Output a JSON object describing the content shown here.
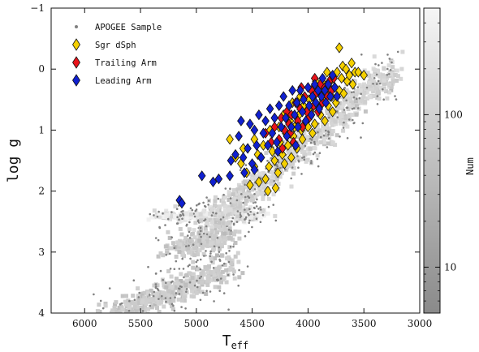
{
  "chart_data": [
    {
      "type": "scatter",
      "xlabel": "T",
      "xlabel_sub": "eff",
      "ylabel": "log g",
      "xlim": [
        6300,
        3000
      ],
      "ylim": [
        4,
        -1
      ],
      "x_inverted": true,
      "y_inverted": true,
      "xticks": [
        6000,
        5500,
        5000,
        4500,
        4000,
        3500,
        3000
      ],
      "xtick_labels": [
        "6000",
        "5500",
        "5000",
        "4500",
        "4000",
        "3500",
        "3000"
      ],
      "yticks": [
        -1,
        0,
        1,
        2,
        3,
        4
      ],
      "ytick_labels": [
        "−1",
        "0",
        "1",
        "2",
        "3",
        "4"
      ],
      "grid": false,
      "legend_position": "top-left",
      "background": {
        "name": "APOGEE Sample",
        "kind": "density (2D histogram) with scattered outlier points",
        "color": "#808080",
        "sequences": [
          {
            "part": "main sequence / subgiant",
            "teff": [
              5900,
              4700
            ],
            "logg": [
              4.1,
              3.3
            ]
          },
          {
            "part": "red clump",
            "teff": [
              5300,
              4500
            ],
            "logg": [
              2.4,
              2.4
            ]
          },
          {
            "part": "red giant branch",
            "teff": [
              4950,
              3200
            ],
            "logg": [
              2.6,
              0.0
            ]
          }
        ]
      },
      "series": [
        {
          "name": "Sgr dSph",
          "marker": "diamond",
          "color": "#f5d000",
          "edge": "#111111",
          "points": [
            [
              4600,
              1.55
            ],
            [
              4550,
              1.7
            ],
            [
              4520,
              1.9
            ],
            [
              4480,
              1.6
            ],
            [
              4450,
              1.4
            ],
            [
              4420,
              1.45
            ],
            [
              4380,
              1.8
            ],
            [
              4350,
              1.6
            ],
            [
              4320,
              1.35
            ],
            [
              4300,
              1.5
            ],
            [
              4290,
              1.95
            ],
            [
              4270,
              1.7
            ],
            [
              4250,
              1.2
            ],
            [
              4230,
              1.4
            ],
            [
              4210,
              1.55
            ],
            [
              4200,
              1.05
            ],
            [
              4180,
              1.25
            ],
            [
              4160,
              0.85
            ],
            [
              4150,
              1.45
            ],
            [
              4130,
              1.1
            ],
            [
              4120,
              0.95
            ],
            [
              4100,
              1.3
            ],
            [
              4080,
              0.75
            ],
            [
              4060,
              1.0
            ],
            [
              4050,
              1.15
            ],
            [
              4040,
              0.6
            ],
            [
              4020,
              0.85
            ],
            [
              4000,
              0.95
            ],
            [
              3990,
              0.5
            ],
            [
              3980,
              0.7
            ],
            [
              3960,
              1.05
            ],
            [
              3950,
              0.45
            ],
            [
              3940,
              0.9
            ],
            [
              3920,
              0.6
            ],
            [
              3900,
              0.35
            ],
            [
              3890,
              0.75
            ],
            [
              3870,
              0.5
            ],
            [
              3860,
              0.25
            ],
            [
              3850,
              0.85
            ],
            [
              3840,
              0.4
            ],
            [
              3820,
              0.6
            ],
            [
              3800,
              0.2
            ],
            [
              3790,
              0.45
            ],
            [
              3780,
              0.7
            ],
            [
              3760,
              0.3
            ],
            [
              3750,
              0.55
            ],
            [
              3740,
              0.05
            ],
            [
              3720,
              0.35
            ],
            [
              3700,
              0.15
            ],
            [
              3690,
              -0.05
            ],
            [
              3680,
              0.4
            ],
            [
              3660,
              0.0
            ],
            [
              3650,
              0.2
            ],
            [
              3630,
              0.1
            ],
            [
              3610,
              -0.1
            ],
            [
              3600,
              0.25
            ],
            [
              3580,
              0.05
            ],
            [
              3550,
              0.05
            ],
            [
              3500,
              0.1
            ],
            [
              3720,
              -0.35
            ],
            [
              4700,
              1.15
            ],
            [
              4650,
              1.45
            ],
            [
              4400,
              1.25
            ],
            [
              4340,
              1.0
            ],
            [
              4260,
              0.95
            ],
            [
              4220,
              0.75
            ],
            [
              4140,
              0.55
            ],
            [
              4070,
              0.45
            ],
            [
              3930,
              0.2
            ],
            [
              3830,
              0.05
            ],
            [
              4440,
              1.85
            ],
            [
              4360,
              2.0
            ],
            [
              4480,
              1.15
            ],
            [
              4580,
              1.3
            ]
          ]
        },
        {
          "name": "Trailing Arm",
          "marker": "diamond",
          "color": "#e8131a",
          "edge": "#111111",
          "points": [
            [
              4380,
              1.05
            ],
            [
              4330,
              1.2
            ],
            [
              4300,
              0.95
            ],
            [
              4260,
              1.15
            ],
            [
              4240,
              0.8
            ],
            [
              4210,
              1.0
            ],
            [
              4190,
              0.7
            ],
            [
              4170,
              0.9
            ],
            [
              4150,
              0.75
            ],
            [
              4130,
              1.2
            ],
            [
              4110,
              0.55
            ],
            [
              4090,
              0.85
            ],
            [
              4070,
              0.65
            ],
            [
              4050,
              0.95
            ],
            [
              4030,
              0.45
            ],
            [
              4010,
              0.7
            ],
            [
              3990,
              0.8
            ],
            [
              3970,
              0.35
            ],
            [
              3950,
              0.6
            ],
            [
              3930,
              0.4
            ],
            [
              3910,
              0.7
            ],
            [
              3890,
              0.25
            ],
            [
              3870,
              0.55
            ],
            [
              3850,
              0.3
            ],
            [
              3830,
              0.45
            ],
            [
              3810,
              0.2
            ],
            [
              3790,
              0.35
            ],
            [
              3770,
              0.15
            ],
            [
              4230,
              1.3
            ],
            [
              4160,
              1.05
            ],
            [
              4060,
              0.3
            ],
            [
              3940,
              0.15
            ]
          ]
        },
        {
          "name": "Leading Arm",
          "marker": "diamond",
          "color": "#1020d0",
          "edge": "#111111",
          "points": [
            [
              5150,
              2.15
            ],
            [
              5130,
              2.2
            ],
            [
              4950,
              1.75
            ],
            [
              4850,
              1.85
            ],
            [
              4800,
              1.8
            ],
            [
              4700,
              1.75
            ],
            [
              4690,
              1.5
            ],
            [
              4650,
              1.4
            ],
            [
              4620,
              1.1
            ],
            [
              4600,
              0.85
            ],
            [
              4570,
              1.7
            ],
            [
              4540,
              1.3
            ],
            [
              4520,
              0.9
            ],
            [
              4500,
              1.55
            ],
            [
              4480,
              1.0
            ],
            [
              4460,
              1.25
            ],
            [
              4440,
              0.75
            ],
            [
              4420,
              1.45
            ],
            [
              4400,
              1.05
            ],
            [
              4380,
              0.85
            ],
            [
              4360,
              1.25
            ],
            [
              4340,
              0.65
            ],
            [
              4320,
              1.05
            ],
            [
              4300,
              0.8
            ],
            [
              4280,
              1.2
            ],
            [
              4260,
              0.6
            ],
            [
              4240,
              0.95
            ],
            [
              4220,
              0.45
            ],
            [
              4200,
              0.8
            ],
            [
              4190,
              1.1
            ],
            [
              4170,
              0.6
            ],
            [
              4150,
              0.95
            ],
            [
              4140,
              0.35
            ],
            [
              4120,
              0.75
            ],
            [
              4100,
              0.55
            ],
            [
              4090,
              0.95
            ],
            [
              4070,
              0.35
            ],
            [
              4050,
              0.7
            ],
            [
              4040,
              0.5
            ],
            [
              4020,
              0.85
            ],
            [
              4000,
              0.3
            ],
            [
              3990,
              0.6
            ],
            [
              3970,
              0.75
            ],
            [
              3960,
              0.45
            ],
            [
              3940,
              0.25
            ],
            [
              3930,
              0.55
            ],
            [
              3910,
              0.35
            ],
            [
              3900,
              0.65
            ],
            [
              3880,
              0.45
            ],
            [
              3870,
              0.15
            ],
            [
              3850,
              0.35
            ],
            [
              3840,
              0.55
            ],
            [
              3820,
              0.25
            ],
            [
              3800,
              0.45
            ],
            [
              3780,
              0.1
            ],
            [
              3760,
              0.3
            ],
            [
              3740,
              0.45
            ],
            [
              4580,
              1.45
            ],
            [
              4480,
              1.65
            ],
            [
              4270,
              1.35
            ],
            [
              4110,
              1.25
            ]
          ]
        }
      ],
      "legend": [
        {
          "label": "APOGEE Sample",
          "marker": "dot",
          "color": "#808080"
        },
        {
          "label": "Sgr dSph",
          "marker": "diamond",
          "color": "#f5d000"
        },
        {
          "label": "Trailing Arm",
          "marker": "diamond",
          "color": "#e8131a"
        },
        {
          "label": "Leading Arm",
          "marker": "diamond",
          "color": "#1020d0"
        }
      ],
      "colorbar": {
        "label": "Num",
        "scale": "log",
        "range": [
          5,
          500
        ],
        "ticks": [
          10,
          100
        ],
        "tick_labels": [
          "10",
          "100"
        ],
        "color_low": "#8a8a8a",
        "color_high": "#f6f6f6"
      }
    }
  ]
}
